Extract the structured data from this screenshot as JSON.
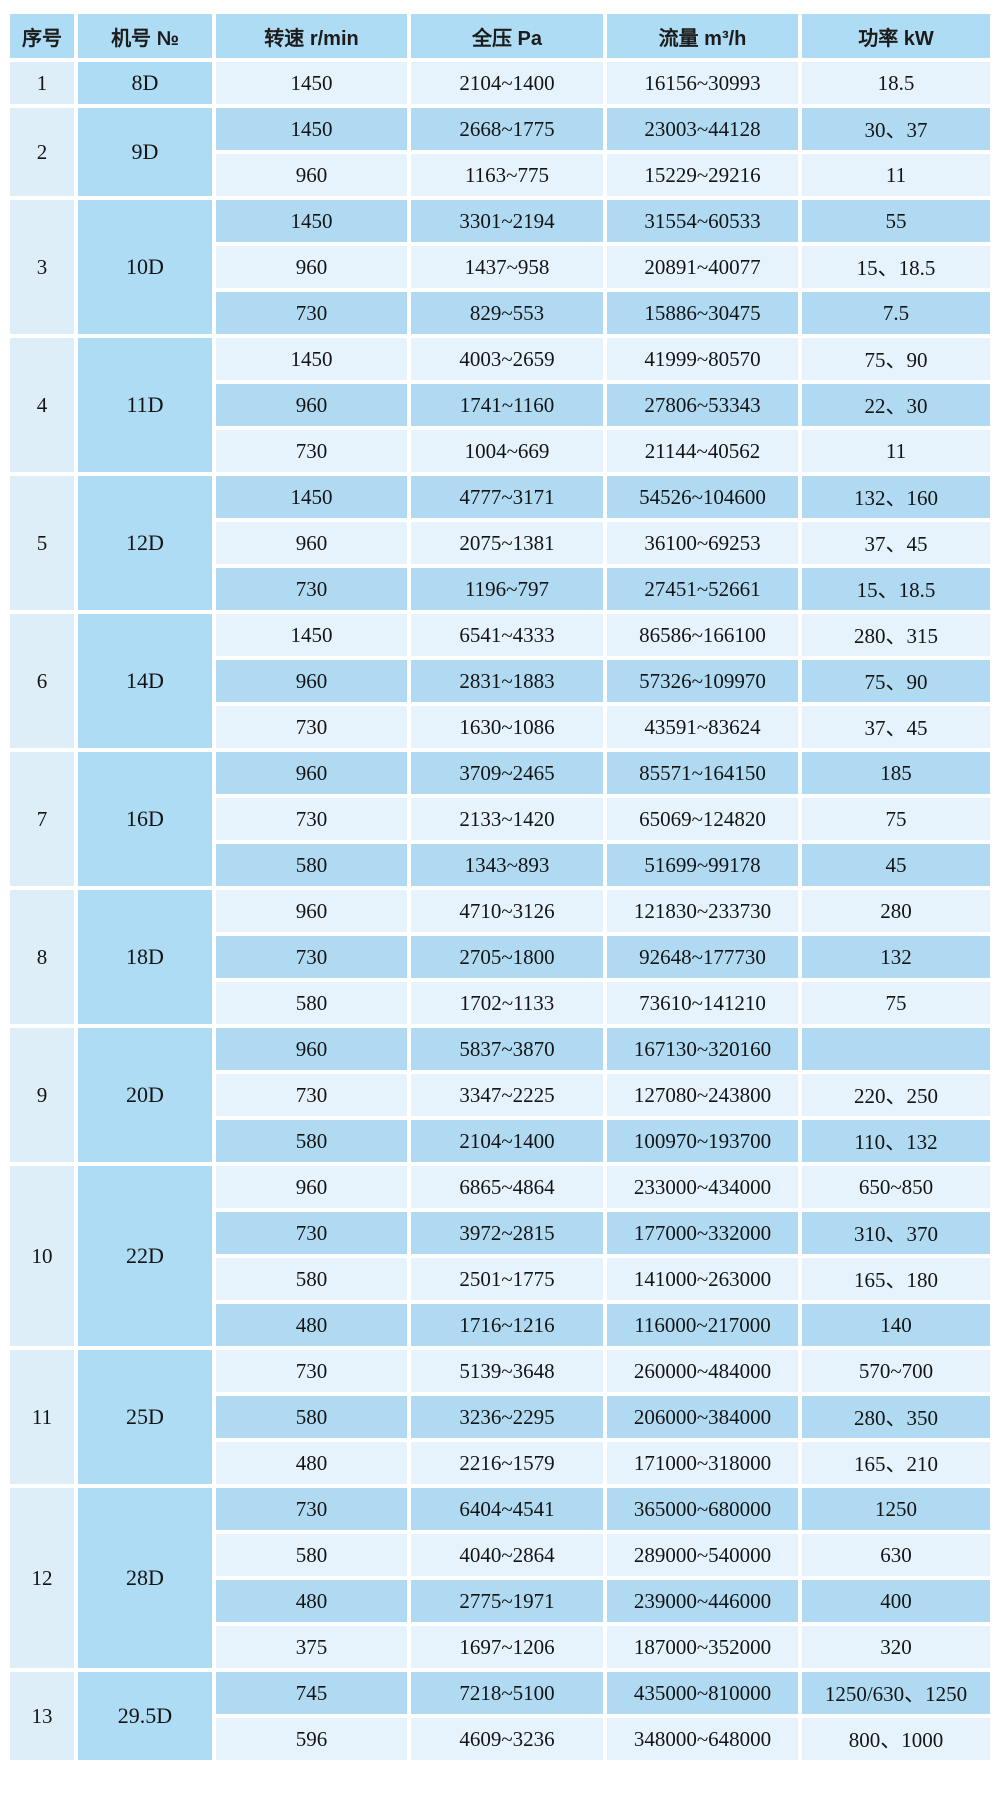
{
  "table": {
    "headers": {
      "serial": "序号",
      "model": "机号 №",
      "speed": "转速 r/min",
      "pressure": "全压 Pa",
      "flow": "流量 m³/h",
      "power": "功率 kW"
    },
    "colors": {
      "header_bg": "#aedcf4",
      "row_medium": "#b0daf2",
      "row_light": "#e6f3fc",
      "serial_bg": "#ddeef9",
      "model_bg": "#aedcf4",
      "gap": "#ffffff"
    },
    "groups": [
      {
        "no": "1",
        "model": "8D",
        "rows": [
          [
            "1450",
            "2104~1400",
            "16156~30993",
            "18.5"
          ]
        ]
      },
      {
        "no": "2",
        "model": "9D",
        "rows": [
          [
            "1450",
            "2668~1775",
            "23003~44128",
            "30、37"
          ],
          [
            "960",
            "1163~775",
            "15229~29216",
            "11"
          ]
        ]
      },
      {
        "no": "3",
        "model": "10D",
        "rows": [
          [
            "1450",
            "3301~2194",
            "31554~60533",
            "55"
          ],
          [
            "960",
            "1437~958",
            "20891~40077",
            "15、18.5"
          ],
          [
            "730",
            "829~553",
            "15886~30475",
            "7.5"
          ]
        ]
      },
      {
        "no": "4",
        "model": "11D",
        "rows": [
          [
            "1450",
            "4003~2659",
            "41999~80570",
            "75、90"
          ],
          [
            "960",
            "1741~1160",
            "27806~53343",
            "22、30"
          ],
          [
            "730",
            "1004~669",
            "21144~40562",
            "11"
          ]
        ]
      },
      {
        "no": "5",
        "model": "12D",
        "rows": [
          [
            "1450",
            "4777~3171",
            "54526~104600",
            "132、160"
          ],
          [
            "960",
            "2075~1381",
            "36100~69253",
            "37、45"
          ],
          [
            "730",
            "1196~797",
            "27451~52661",
            "15、18.5"
          ]
        ]
      },
      {
        "no": "6",
        "model": "14D",
        "rows": [
          [
            "1450",
            "6541~4333",
            "86586~166100",
            "280、315"
          ],
          [
            "960",
            "2831~1883",
            "57326~109970",
            "75、90"
          ],
          [
            "730",
            "1630~1086",
            "43591~83624",
            "37、45"
          ]
        ]
      },
      {
        "no": "7",
        "model": "16D",
        "rows": [
          [
            "960",
            "3709~2465",
            "85571~164150",
            "185"
          ],
          [
            "730",
            "2133~1420",
            "65069~124820",
            "75"
          ],
          [
            "580",
            "1343~893",
            "51699~99178",
            "45"
          ]
        ]
      },
      {
        "no": "8",
        "model": "18D",
        "rows": [
          [
            "960",
            "4710~3126",
            "121830~233730",
            "280"
          ],
          [
            "730",
            "2705~1800",
            "92648~177730",
            "132"
          ],
          [
            "580",
            "1702~1133",
            "73610~141210",
            "75"
          ]
        ]
      },
      {
        "no": "9",
        "model": "20D",
        "rows": [
          [
            "960",
            "5837~3870",
            "167130~320160",
            ""
          ],
          [
            "730",
            "3347~2225",
            "127080~243800",
            "220、250"
          ],
          [
            "580",
            "2104~1400",
            "100970~193700",
            "110、132"
          ]
        ]
      },
      {
        "no": "10",
        "model": "22D",
        "rows": [
          [
            "960",
            "6865~4864",
            "233000~434000",
            "650~850"
          ],
          [
            "730",
            "3972~2815",
            "177000~332000",
            "310、370"
          ],
          [
            "580",
            "2501~1775",
            "141000~263000",
            "165、180"
          ],
          [
            "480",
            "1716~1216",
            "116000~217000",
            "140"
          ]
        ]
      },
      {
        "no": "11",
        "model": "25D",
        "rows": [
          [
            "730",
            "5139~3648",
            "260000~484000",
            "570~700"
          ],
          [
            "580",
            "3236~2295",
            "206000~384000",
            "280、350"
          ],
          [
            "480",
            "2216~1579",
            "171000~318000",
            "165、210"
          ]
        ]
      },
      {
        "no": "12",
        "model": "28D",
        "rows": [
          [
            "730",
            "6404~4541",
            "365000~680000",
            "1250"
          ],
          [
            "580",
            "4040~2864",
            "289000~540000",
            "630"
          ],
          [
            "480",
            "2775~1971",
            "239000~446000",
            "400"
          ],
          [
            "375",
            "1697~1206",
            "187000~352000",
            "320"
          ]
        ]
      },
      {
        "no": "13",
        "model": "29.5D",
        "rows": [
          [
            "745",
            "7218~5100",
            "435000~810000",
            "1250/630、1250"
          ],
          [
            "596",
            "4609~3236",
            "348000~648000",
            "800、1000"
          ]
        ]
      }
    ]
  }
}
